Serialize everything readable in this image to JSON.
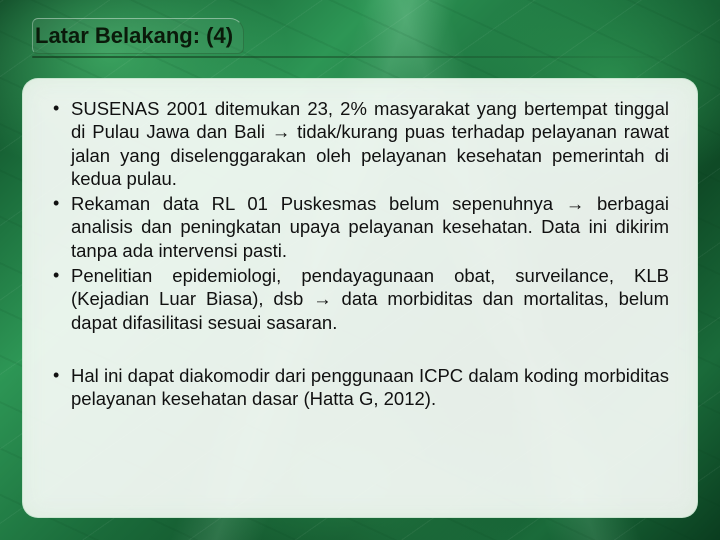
{
  "slide": {
    "title": "Latar Belakang: (4)",
    "title_fontsize": 22,
    "title_color": "#0a1a0a",
    "body_fontsize": 18.5,
    "body_color": "#111111",
    "panel_bg": "#f8fcf8",
    "accent_green_dark": "#0a3d1f",
    "accent_green_mid": "#1a6b3a",
    "accent_green_light": "#2d9655",
    "bullets_group1": [
      "SUSENAS 2001 ditemukan 23, 2% masyarakat yang bertempat tinggal di Pulau Jawa dan Bali → tidak/kurang puas terhadap pelayanan rawat jalan yang diselenggarakan oleh pelayanan kesehatan pemerintah di kedua pulau.",
      "Rekaman data RL 01 Puskesmas belum sepenuhnya → berbagai analisis dan peningkatan upaya pelayanan kesehatan. Data ini dikirim tanpa ada intervensi pasti.",
      "Penelitian epidemiologi, pendayagunaan obat, surveilance, KLB (Kejadian Luar Biasa), dsb → data morbiditas dan mortalitas, belum dapat difasilitasi sesuai sasaran."
    ],
    "bullets_group2": [
      "Hal ini dapat diakomodir dari penggunaan ICPC dalam koding morbiditas pelayanan kesehatan dasar (Hatta G, 2012)."
    ]
  }
}
